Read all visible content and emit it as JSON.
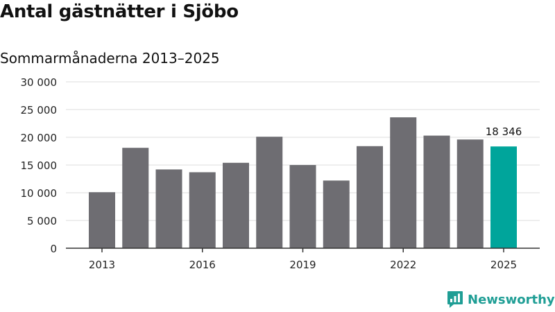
{
  "colors": {
    "bar": "#6e6d72",
    "highlight": "#00a59b",
    "grid": "#dddddd",
    "axis": "#333333",
    "brand": "#1f9e95"
  },
  "chart_data": {
    "type": "bar",
    "title": "Antal gästnätter i Sjöbo",
    "subtitle": "Sommarmånaderna 2013–2025",
    "xlabel": "",
    "ylabel": "",
    "categories": [
      "2013",
      "2014",
      "2015",
      "2016",
      "2017",
      "2018",
      "2019",
      "2020",
      "2021",
      "2022",
      "2023",
      "2024",
      "2025"
    ],
    "values": [
      10100,
      18100,
      14200,
      13700,
      15400,
      20100,
      15000,
      12200,
      18400,
      23600,
      20300,
      19600,
      18346
    ],
    "highlight_index": 12,
    "data_labels": [
      {
        "index": 12,
        "text": "18 346"
      }
    ],
    "x_tick_labels": [
      {
        "index": 0,
        "text": "2013"
      },
      {
        "index": 3,
        "text": "2016"
      },
      {
        "index": 6,
        "text": "2019"
      },
      {
        "index": 9,
        "text": "2022"
      },
      {
        "index": 12,
        "text": "2025"
      }
    ],
    "y_ticks": [
      0,
      5000,
      10000,
      15000,
      20000,
      25000,
      30000
    ],
    "y_tick_labels": [
      "0",
      "5 000",
      "10 000",
      "15 000",
      "20 000",
      "25 000",
      "30 000"
    ],
    "ylim": [
      0,
      30000
    ],
    "grid": true,
    "legend": "none"
  },
  "brand": {
    "name": "Newsworthy",
    "icon": "newsworthy-logo-icon"
  }
}
